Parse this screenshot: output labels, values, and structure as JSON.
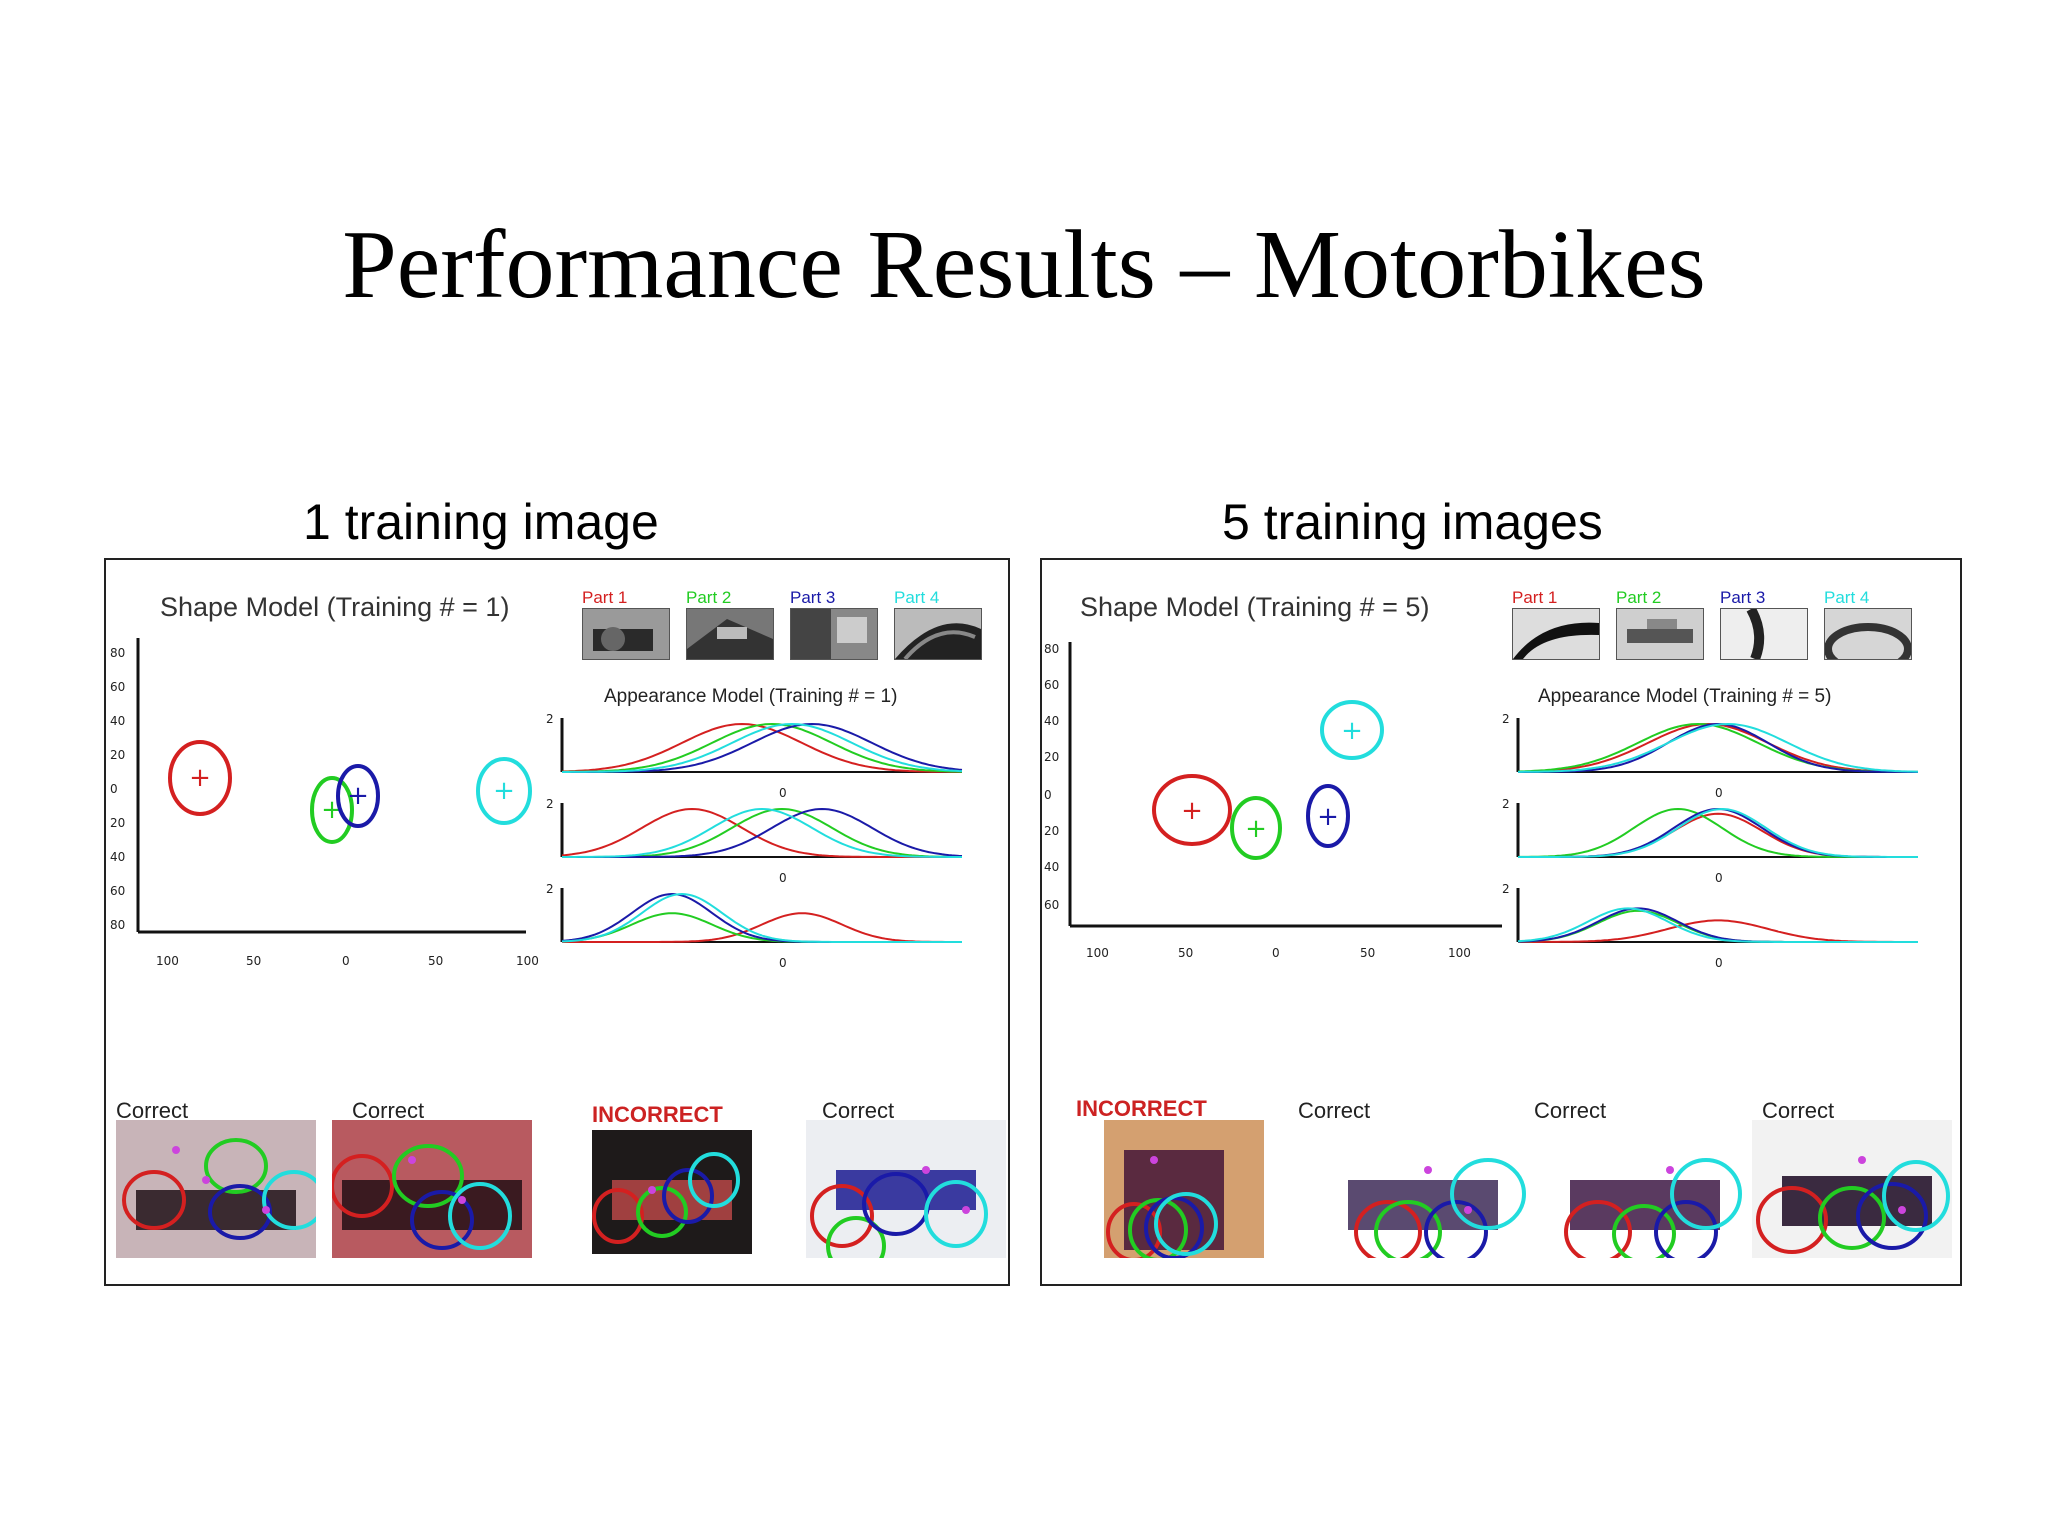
{
  "slide": {
    "title": "Performance Results – Motorbikes"
  },
  "colors": {
    "part1": "#d42020",
    "part2": "#22cc22",
    "part3": "#1a1aa8",
    "part4": "#22dddd",
    "marker": "#cc44dd",
    "incorrect": "#cc2222"
  },
  "left": {
    "label": "1 training image",
    "shape_title": "Shape Model (Training # = 1)",
    "appearance_title": "Appearance Model (Training # = 1)",
    "parts": [
      "Part 1",
      "Part 2",
      "Part 3",
      "Part 4"
    ],
    "shape_y_ticks": [
      "80",
      "60",
      "40",
      "20",
      "0",
      "20",
      "40",
      "60",
      "80"
    ],
    "shape_x_ticks": [
      "100",
      "50",
      "0",
      "50",
      "100"
    ],
    "app_y_tick": "2",
    "app_zero_tick": "0",
    "results": [
      "Correct",
      "Correct",
      "INCORRECT",
      "Correct"
    ]
  },
  "right": {
    "label": "5 training images",
    "shape_title": "Shape Model (Training # = 5)",
    "appearance_title": "Appearance Model (Training # = 5)",
    "parts": [
      "Part 1",
      "Part 2",
      "Part 3",
      "Part 4"
    ],
    "shape_y_ticks": [
      "80",
      "60",
      "40",
      "20",
      "0",
      "20",
      "40",
      "60"
    ],
    "shape_x_ticks": [
      "100",
      "50",
      "0",
      "50",
      "100"
    ],
    "app_y_tick": "2",
    "app_zero_tick": "0",
    "results": [
      "INCORRECT",
      "Correct",
      "Correct",
      "Correct"
    ]
  }
}
